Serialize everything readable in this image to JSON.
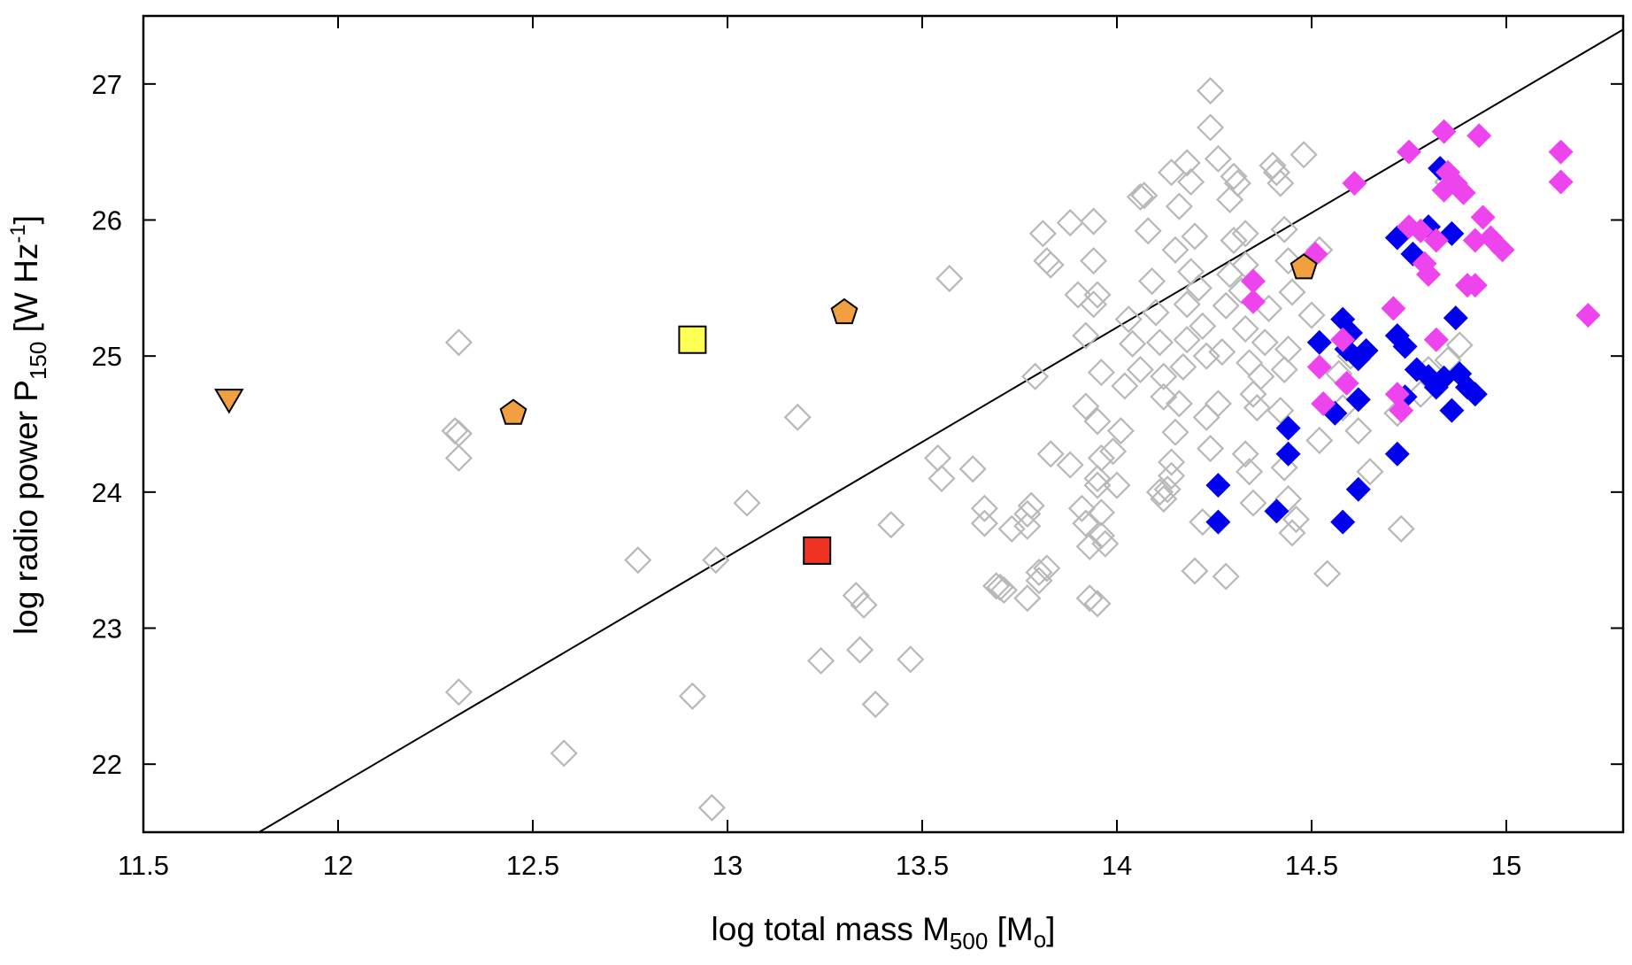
{
  "chart_data": {
    "type": "scatter",
    "xlabel_parts": {
      "main": "log total mass M",
      "sub": "500",
      "tail": " [M",
      "sub2": "o",
      "end": "]"
    },
    "ylabel_parts": {
      "main": "log radio power P",
      "sub": "150",
      "mid": " [W Hz",
      "sup": "-1",
      "end": "]"
    },
    "xlim": [
      11.5,
      15.3
    ],
    "ylim": [
      21.5,
      27.5
    ],
    "x_ticks": [
      11.5,
      12,
      12.5,
      13,
      13.5,
      14,
      14.5,
      15
    ],
    "x_tick_labels": [
      "11.5",
      "12",
      "12.5",
      "13",
      "13.5",
      "14",
      "14.5",
      "15"
    ],
    "y_ticks": [
      22,
      23,
      24,
      25,
      26,
      27
    ],
    "y_tick_labels": [
      "22",
      "23",
      "24",
      "25",
      "26",
      "27"
    ],
    "colors": {
      "gray_open": "#b8b8b8",
      "blue": "#0000ee",
      "magenta": "#ee44ee",
      "orange": "#f0a040",
      "yellow": "#ffff55",
      "red": "#ee3322",
      "line": "#000000"
    },
    "line": {
      "name": "fit line",
      "x": [
        11.5,
        15.3
      ],
      "y": [
        21.0,
        27.4
      ]
    },
    "series": [
      {
        "name": "comparison sample (open gray diamonds)",
        "marker": "diamond-open",
        "points": [
          [
            12.31,
            25.1
          ],
          [
            12.3,
            24.45
          ],
          [
            12.31,
            24.43
          ],
          [
            12.31,
            24.25
          ],
          [
            12.31,
            22.53
          ],
          [
            12.58,
            22.08
          ],
          [
            12.77,
            23.5
          ],
          [
            12.91,
            22.5
          ],
          [
            12.97,
            23.5
          ],
          [
            12.96,
            21.68
          ],
          [
            13.05,
            23.92
          ],
          [
            13.18,
            24.55
          ],
          [
            13.24,
            22.76
          ],
          [
            13.33,
            23.24
          ],
          [
            13.35,
            23.17
          ],
          [
            13.34,
            22.84
          ],
          [
            13.38,
            22.44
          ],
          [
            13.42,
            23.76
          ],
          [
            13.47,
            22.77
          ],
          [
            13.57,
            25.57
          ],
          [
            13.54,
            24.25
          ],
          [
            13.55,
            24.1
          ],
          [
            13.63,
            24.17
          ],
          [
            13.66,
            23.88
          ],
          [
            13.66,
            23.77
          ],
          [
            13.69,
            23.31
          ],
          [
            13.71,
            23.28
          ],
          [
            13.7,
            23.3
          ],
          [
            13.73,
            23.73
          ],
          [
            13.77,
            23.75
          ],
          [
            13.77,
            23.84
          ],
          [
            13.78,
            23.9
          ],
          [
            13.77,
            23.22
          ],
          [
            13.8,
            23.41
          ],
          [
            13.8,
            23.35
          ],
          [
            13.82,
            23.44
          ],
          [
            13.83,
            24.28
          ],
          [
            13.79,
            24.85
          ],
          [
            13.81,
            25.9
          ],
          [
            13.82,
            25.7
          ],
          [
            13.83,
            25.67
          ],
          [
            13.88,
            25.98
          ],
          [
            13.88,
            24.2
          ],
          [
            13.9,
            25.45
          ],
          [
            13.92,
            25.15
          ],
          [
            13.92,
            24.63
          ],
          [
            13.91,
            23.88
          ],
          [
            13.92,
            23.77
          ],
          [
            13.93,
            23.22
          ],
          [
            13.93,
            23.6
          ],
          [
            13.94,
            25.99
          ],
          [
            13.94,
            25.7
          ],
          [
            13.94,
            25.38
          ],
          [
            13.95,
            25.45
          ],
          [
            13.96,
            24.88
          ],
          [
            13.95,
            24.52
          ],
          [
            13.96,
            24.25
          ],
          [
            13.95,
            24.1
          ],
          [
            13.95,
            24.05
          ],
          [
            13.96,
            23.85
          ],
          [
            13.96,
            23.68
          ],
          [
            13.97,
            23.62
          ],
          [
            13.95,
            23.18
          ],
          [
            13.99,
            24.3
          ],
          [
            14.0,
            24.05
          ],
          [
            14.01,
            24.45
          ],
          [
            14.02,
            24.78
          ],
          [
            14.03,
            25.27
          ],
          [
            14.04,
            25.09
          ],
          [
            14.06,
            24.9
          ],
          [
            14.06,
            26.17
          ],
          [
            14.07,
            26.18
          ],
          [
            14.08,
            25.92
          ],
          [
            14.09,
            25.55
          ],
          [
            14.1,
            25.32
          ],
          [
            14.11,
            25.1
          ],
          [
            14.12,
            24.85
          ],
          [
            14.12,
            24.7
          ],
          [
            14.11,
            24.0
          ],
          [
            14.12,
            23.95
          ],
          [
            14.13,
            24.02
          ],
          [
            14.14,
            24.12
          ],
          [
            14.14,
            24.22
          ],
          [
            14.15,
            24.44
          ],
          [
            14.16,
            24.65
          ],
          [
            14.17,
            24.92
          ],
          [
            14.18,
            25.12
          ],
          [
            14.18,
            25.38
          ],
          [
            14.19,
            25.62
          ],
          [
            14.2,
            25.88
          ],
          [
            14.15,
            25.78
          ],
          [
            14.14,
            26.35
          ],
          [
            14.16,
            26.1
          ],
          [
            14.18,
            26.42
          ],
          [
            14.19,
            26.28
          ],
          [
            14.21,
            25.5
          ],
          [
            14.22,
            25.22
          ],
          [
            14.23,
            25.0
          ],
          [
            14.23,
            24.55
          ],
          [
            14.24,
            24.32
          ],
          [
            14.22,
            23.78
          ],
          [
            14.2,
            23.42
          ],
          [
            14.28,
            23.38
          ],
          [
            14.26,
            24.65
          ],
          [
            14.27,
            25.03
          ],
          [
            14.28,
            25.37
          ],
          [
            14.29,
            25.6
          ],
          [
            14.3,
            25.85
          ],
          [
            14.29,
            26.15
          ],
          [
            14.3,
            26.32
          ],
          [
            14.24,
            26.95
          ],
          [
            14.24,
            26.68
          ],
          [
            14.26,
            26.45
          ],
          [
            14.31,
            26.27
          ],
          [
            14.33,
            25.9
          ],
          [
            14.33,
            25.67
          ],
          [
            14.32,
            25.48
          ],
          [
            14.33,
            25.2
          ],
          [
            14.34,
            24.95
          ],
          [
            14.35,
            24.72
          ],
          [
            14.33,
            24.28
          ],
          [
            14.34,
            24.15
          ],
          [
            14.35,
            23.92
          ],
          [
            14.36,
            24.62
          ],
          [
            14.37,
            24.85
          ],
          [
            14.38,
            25.1
          ],
          [
            14.39,
            25.35
          ],
          [
            14.4,
            26.4
          ],
          [
            14.41,
            26.35
          ],
          [
            14.42,
            26.27
          ],
          [
            14.43,
            25.93
          ],
          [
            14.44,
            25.7
          ],
          [
            14.45,
            25.47
          ],
          [
            14.44,
            25.05
          ],
          [
            14.43,
            24.9
          ],
          [
            14.42,
            24.6
          ],
          [
            14.43,
            24.18
          ],
          [
            14.44,
            23.95
          ],
          [
            14.45,
            23.7
          ],
          [
            14.46,
            23.8
          ],
          [
            14.48,
            26.48
          ],
          [
            14.5,
            25.3
          ],
          [
            14.52,
            24.38
          ],
          [
            14.52,
            25.78
          ],
          [
            14.54,
            23.4
          ],
          [
            14.57,
            24.87
          ],
          [
            14.6,
            25.0
          ],
          [
            14.62,
            24.45
          ],
          [
            14.58,
            24.62
          ],
          [
            14.65,
            24.15
          ],
          [
            14.73,
            23.73
          ],
          [
            14.8,
            24.9
          ],
          [
            14.85,
            24.97
          ],
          [
            14.88,
            25.08
          ],
          [
            14.85,
            26.28
          ],
          [
            14.72,
            24.58
          ],
          [
            14.78,
            24.72
          ]
        ]
      },
      {
        "name": "blue filled diamonds",
        "marker": "diamond",
        "points": [
          [
            14.26,
            24.05
          ],
          [
            14.26,
            23.78
          ],
          [
            14.41,
            23.86
          ],
          [
            14.44,
            24.47
          ],
          [
            14.44,
            24.28
          ],
          [
            14.52,
            25.1
          ],
          [
            14.56,
            24.58
          ],
          [
            14.58,
            25.27
          ],
          [
            14.59,
            25.05
          ],
          [
            14.6,
            25.17
          ],
          [
            14.62,
            24.98
          ],
          [
            14.64,
            25.04
          ],
          [
            14.62,
            24.68
          ],
          [
            14.62,
            24.02
          ],
          [
            14.58,
            23.78
          ],
          [
            14.72,
            24.28
          ],
          [
            14.74,
            24.7
          ],
          [
            14.72,
            25.15
          ],
          [
            14.74,
            25.07
          ],
          [
            14.77,
            24.9
          ],
          [
            14.8,
            24.85
          ],
          [
            14.82,
            24.77
          ],
          [
            14.84,
            24.84
          ],
          [
            14.86,
            24.6
          ],
          [
            14.88,
            24.87
          ],
          [
            14.9,
            24.77
          ],
          [
            14.92,
            24.72
          ],
          [
            14.87,
            25.28
          ],
          [
            14.8,
            25.95
          ],
          [
            14.86,
            25.9
          ],
          [
            14.83,
            26.38
          ],
          [
            14.72,
            25.87
          ],
          [
            14.76,
            25.75
          ]
        ]
      },
      {
        "name": "magenta filled diamonds",
        "marker": "diamond",
        "points": [
          [
            14.35,
            25.55
          ],
          [
            14.35,
            25.4
          ],
          [
            14.51,
            25.75
          ],
          [
            14.52,
            24.92
          ],
          [
            14.53,
            24.65
          ],
          [
            14.58,
            25.12
          ],
          [
            14.59,
            24.8
          ],
          [
            14.61,
            26.27
          ],
          [
            14.71,
            25.35
          ],
          [
            14.72,
            24.72
          ],
          [
            14.73,
            24.6
          ],
          [
            14.75,
            26.5
          ],
          [
            14.75,
            25.95
          ],
          [
            14.78,
            25.92
          ],
          [
            14.79,
            25.68
          ],
          [
            14.8,
            25.6
          ],
          [
            14.82,
            25.85
          ],
          [
            14.82,
            25.12
          ],
          [
            14.84,
            26.65
          ],
          [
            14.85,
            26.35
          ],
          [
            14.84,
            26.22
          ],
          [
            14.87,
            26.27
          ],
          [
            14.89,
            26.2
          ],
          [
            14.9,
            25.52
          ],
          [
            14.92,
            25.85
          ],
          [
            14.93,
            26.62
          ],
          [
            14.94,
            26.02
          ],
          [
            14.96,
            25.87
          ],
          [
            14.99,
            25.78
          ],
          [
            15.14,
            26.5
          ],
          [
            15.14,
            26.28
          ],
          [
            15.21,
            25.3
          ],
          [
            14.92,
            25.52
          ]
        ]
      },
      {
        "name": "orange pentagons",
        "marker": "pentagon",
        "points": [
          [
            12.45,
            24.58
          ],
          [
            13.3,
            25.32
          ],
          [
            14.48,
            25.65
          ]
        ]
      },
      {
        "name": "orange triangle",
        "marker": "triangle-down",
        "points": [
          [
            11.72,
            24.68
          ]
        ]
      },
      {
        "name": "yellow square",
        "marker": "square",
        "points": [
          [
            12.91,
            25.12
          ]
        ]
      },
      {
        "name": "red square",
        "marker": "square",
        "points": [
          [
            13.23,
            23.57
          ]
        ]
      }
    ]
  }
}
